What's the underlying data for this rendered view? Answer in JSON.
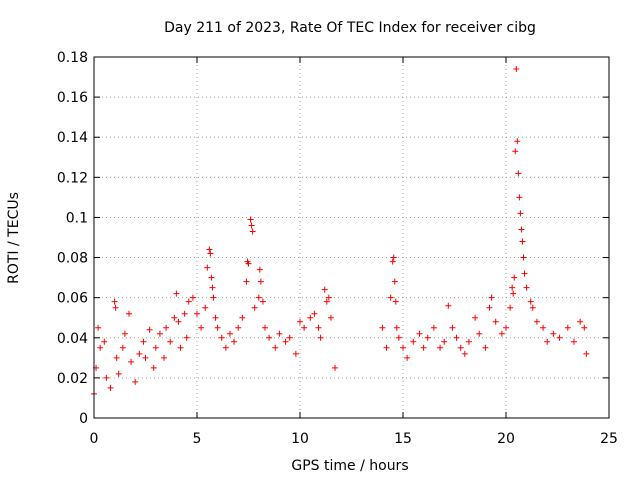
{
  "chart_data": {
    "type": "scatter",
    "title": "Day 211 of 2023, Rate Of TEC Index for receiver cibg",
    "xlabel": "GPS time / hours",
    "ylabel": "ROTI / TECUs",
    "xlim": [
      0,
      25
    ],
    "ylim": [
      0,
      0.18
    ],
    "xticks": [
      0,
      5,
      10,
      15,
      20,
      25
    ],
    "xtick_labels": [
      "0",
      "5",
      "10",
      "15",
      "20",
      "25"
    ],
    "yticks": [
      0,
      0.02,
      0.04,
      0.06,
      0.08,
      0.1,
      0.12,
      0.14,
      0.16,
      0.18
    ],
    "ytick_labels": [
      "0",
      "0.02",
      "0.04",
      "0.06",
      "0.08",
      "0.1",
      "0.12",
      "0.14",
      "0.16",
      "0.18"
    ],
    "grid": true,
    "marker": "+",
    "color": "#ff0000",
    "series": [
      {
        "points": [
          [
            0.0,
            0.012
          ],
          [
            0.1,
            0.025
          ],
          [
            0.2,
            0.045
          ],
          [
            0.3,
            0.035
          ],
          [
            0.5,
            0.038
          ],
          [
            0.6,
            0.02
          ],
          [
            0.8,
            0.015
          ],
          [
            1.0,
            0.058
          ],
          [
            1.05,
            0.055
          ],
          [
            1.1,
            0.03
          ],
          [
            1.2,
            0.022
          ],
          [
            1.4,
            0.035
          ],
          [
            1.5,
            0.042
          ],
          [
            1.7,
            0.052
          ],
          [
            1.8,
            0.028
          ],
          [
            2.0,
            0.018
          ],
          [
            2.2,
            0.032
          ],
          [
            2.4,
            0.038
          ],
          [
            2.5,
            0.03
          ],
          [
            2.7,
            0.044
          ],
          [
            2.9,
            0.025
          ],
          [
            3.0,
            0.035
          ],
          [
            3.2,
            0.042
          ],
          [
            3.4,
            0.03
          ],
          [
            3.5,
            0.045
          ],
          [
            3.7,
            0.038
          ],
          [
            3.9,
            0.05
          ],
          [
            4.0,
            0.062
          ],
          [
            4.1,
            0.048
          ],
          [
            4.2,
            0.035
          ],
          [
            4.4,
            0.052
          ],
          [
            4.5,
            0.04
          ],
          [
            4.6,
            0.058
          ],
          [
            4.8,
            0.06
          ],
          [
            5.0,
            0.052
          ],
          [
            5.2,
            0.045
          ],
          [
            5.4,
            0.055
          ],
          [
            5.5,
            0.075
          ],
          [
            5.6,
            0.084
          ],
          [
            5.65,
            0.082
          ],
          [
            5.7,
            0.07
          ],
          [
            5.75,
            0.065
          ],
          [
            5.8,
            0.06
          ],
          [
            5.9,
            0.05
          ],
          [
            6.0,
            0.045
          ],
          [
            6.2,
            0.04
          ],
          [
            6.4,
            0.035
          ],
          [
            6.6,
            0.042
          ],
          [
            6.8,
            0.038
          ],
          [
            7.0,
            0.045
          ],
          [
            7.2,
            0.05
          ],
          [
            7.4,
            0.068
          ],
          [
            7.45,
            0.078
          ],
          [
            7.5,
            0.077
          ],
          [
            7.6,
            0.099
          ],
          [
            7.65,
            0.096
          ],
          [
            7.7,
            0.093
          ],
          [
            7.8,
            0.055
          ],
          [
            8.0,
            0.06
          ],
          [
            8.05,
            0.074
          ],
          [
            8.1,
            0.068
          ],
          [
            8.2,
            0.058
          ],
          [
            8.3,
            0.045
          ],
          [
            8.5,
            0.04
          ],
          [
            8.8,
            0.035
          ],
          [
            9.0,
            0.042
          ],
          [
            9.3,
            0.038
          ],
          [
            9.5,
            0.04
          ],
          [
            9.8,
            0.032
          ],
          [
            10.0,
            0.048
          ],
          [
            10.2,
            0.045
          ],
          [
            10.5,
            0.05
          ],
          [
            10.7,
            0.052
          ],
          [
            10.9,
            0.045
          ],
          [
            11.0,
            0.04
          ],
          [
            11.2,
            0.064
          ],
          [
            11.3,
            0.058
          ],
          [
            11.4,
            0.06
          ],
          [
            11.5,
            0.05
          ],
          [
            11.7,
            0.025
          ],
          [
            14.0,
            0.045
          ],
          [
            14.2,
            0.035
          ],
          [
            14.4,
            0.06
          ],
          [
            14.5,
            0.078
          ],
          [
            14.55,
            0.08
          ],
          [
            14.6,
            0.068
          ],
          [
            14.65,
            0.058
          ],
          [
            14.7,
            0.045
          ],
          [
            14.8,
            0.04
          ],
          [
            15.0,
            0.035
          ],
          [
            15.2,
            0.03
          ],
          [
            15.5,
            0.038
          ],
          [
            15.8,
            0.042
          ],
          [
            16.0,
            0.035
          ],
          [
            16.2,
            0.04
          ],
          [
            16.5,
            0.045
          ],
          [
            16.8,
            0.035
          ],
          [
            17.0,
            0.038
          ],
          [
            17.2,
            0.056
          ],
          [
            17.4,
            0.045
          ],
          [
            17.6,
            0.04
          ],
          [
            17.8,
            0.035
          ],
          [
            18.0,
            0.032
          ],
          [
            18.2,
            0.038
          ],
          [
            18.5,
            0.05
          ],
          [
            18.7,
            0.042
          ],
          [
            19.0,
            0.035
          ],
          [
            19.2,
            0.055
          ],
          [
            19.3,
            0.06
          ],
          [
            19.5,
            0.048
          ],
          [
            19.8,
            0.042
          ],
          [
            20.0,
            0.045
          ],
          [
            20.2,
            0.055
          ],
          [
            20.3,
            0.065
          ],
          [
            20.35,
            0.062
          ],
          [
            20.4,
            0.07
          ],
          [
            20.45,
            0.133
          ],
          [
            20.5,
            0.174
          ],
          [
            20.55,
            0.138
          ],
          [
            20.6,
            0.122
          ],
          [
            20.65,
            0.11
          ],
          [
            20.7,
            0.102
          ],
          [
            20.75,
            0.094
          ],
          [
            20.8,
            0.088
          ],
          [
            20.85,
            0.08
          ],
          [
            20.9,
            0.072
          ],
          [
            21.0,
            0.065
          ],
          [
            21.2,
            0.058
          ],
          [
            21.3,
            0.055
          ],
          [
            21.5,
            0.048
          ],
          [
            21.8,
            0.045
          ],
          [
            22.0,
            0.038
          ],
          [
            22.3,
            0.042
          ],
          [
            22.6,
            0.04
          ],
          [
            23.0,
            0.045
          ],
          [
            23.3,
            0.038
          ],
          [
            23.6,
            0.048
          ],
          [
            23.8,
            0.045
          ],
          [
            23.9,
            0.032
          ]
        ]
      }
    ]
  }
}
